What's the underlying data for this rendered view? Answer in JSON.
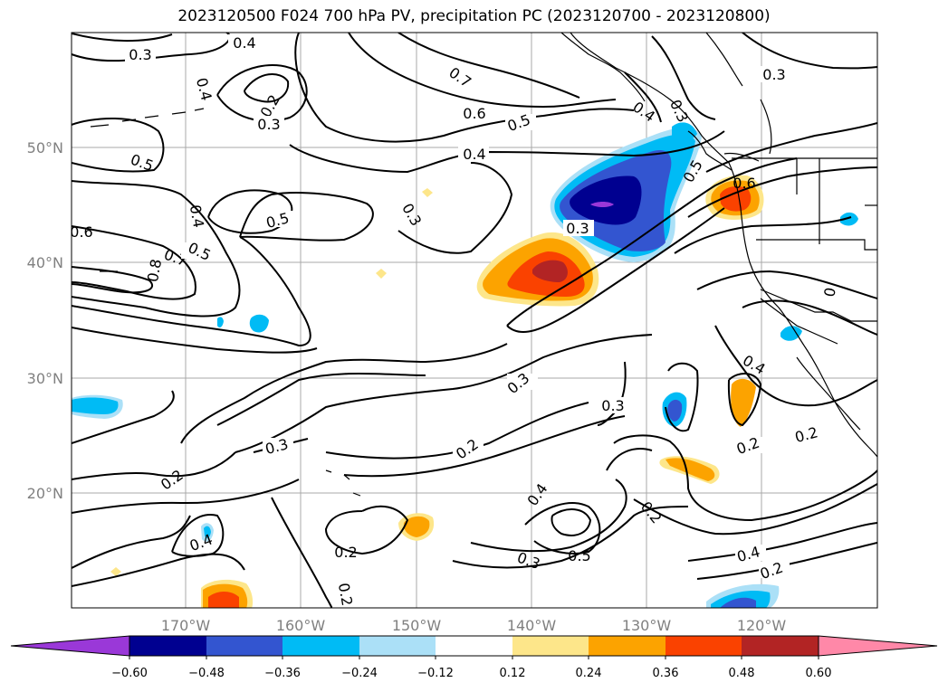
{
  "title": "2023120500 F024 700 hPa PV, precipitation PC (2023120700 - 2023120800)",
  "axes": {
    "lon_labels": [
      "170°W",
      "160°W",
      "150°W",
      "140°W",
      "130°W",
      "120°W"
    ],
    "lat_labels": [
      "50°N",
      "40°N",
      "30°N",
      "20°N"
    ]
  },
  "colorbar": {
    "ticks": [
      "−0.60",
      "−0.48",
      "−0.36",
      "−0.24",
      "−0.12",
      "0.12",
      "0.24",
      "0.36",
      "0.48",
      "0.60"
    ],
    "colors": [
      "#9a38d8",
      "#000090",
      "#3355d0",
      "#00bbf5",
      "#abe0f7",
      "#ffffff",
      "#fde68a",
      "#fca300",
      "#fa4200",
      "#b22424",
      "#ff88a8"
    ]
  },
  "contour_labels": [
    "0.3",
    "0.4",
    "0.2",
    "0.4",
    "0.3",
    "0.5",
    "0.7",
    "0.6",
    "0.5",
    "0.4",
    "0.3",
    "0.3",
    "0.4",
    "0.5",
    "0.8",
    "0.7",
    "0.6",
    "0.4",
    "0.5",
    "0.5",
    "0.3",
    "0.3",
    "0.3",
    "0.3",
    "0.2",
    "0.2",
    "0.3",
    "0.2",
    "0.2",
    "0.4",
    "0.4",
    "0.2",
    "0.5",
    "0.3",
    "0.2",
    "0.4",
    "0.4",
    "0.2",
    "0.2",
    "0.6",
    "0"
  ]
}
